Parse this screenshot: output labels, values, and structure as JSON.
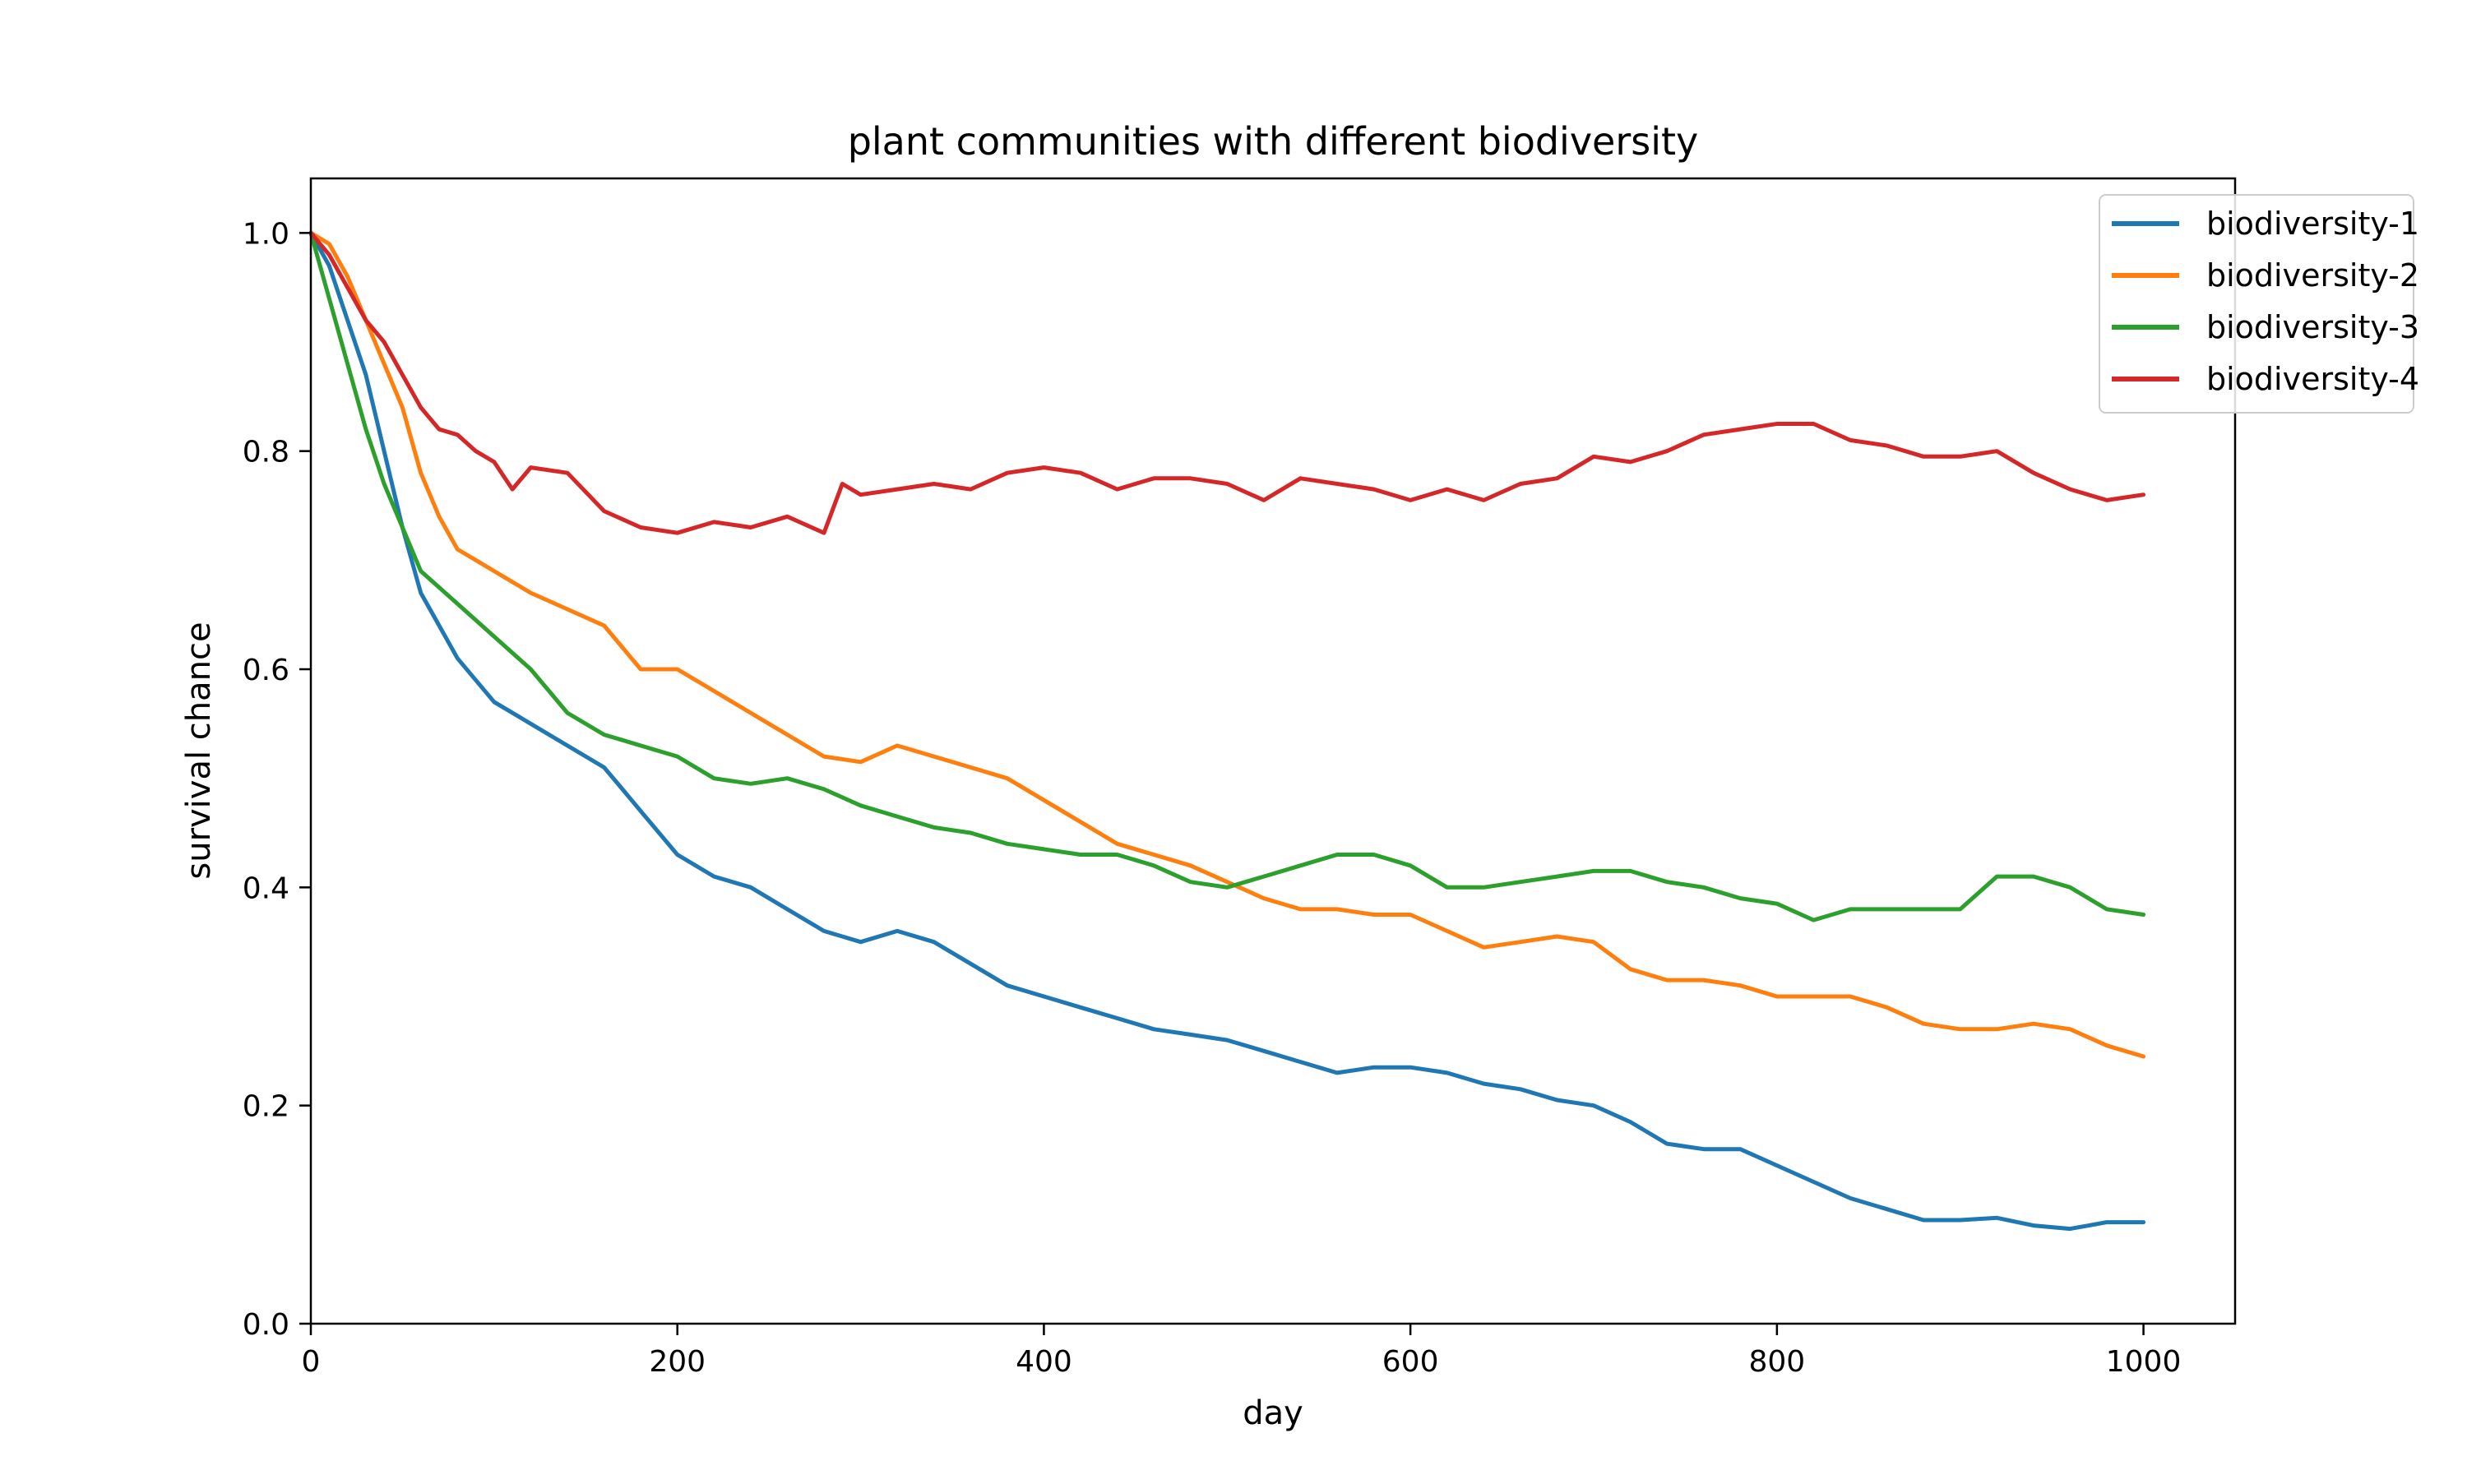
{
  "chart_data": {
    "type": "line",
    "title": "plant communities with different biodiversity",
    "xlabel": "day",
    "ylabel": "survival chance",
    "xlim": [
      0,
      1050
    ],
    "ylim": [
      0,
      1.05
    ],
    "xticks": [
      0,
      200,
      400,
      600,
      800,
      1000
    ],
    "xtick_labels": [
      "0",
      "200",
      "400",
      "600",
      "800",
      "1000"
    ],
    "yticks": [
      0.0,
      0.2,
      0.4,
      0.6,
      0.8,
      1.0
    ],
    "ytick_labels": [
      "0.0",
      "0.2",
      "0.4",
      "0.6",
      "0.8",
      "1.0"
    ],
    "grid": false,
    "legend_position": "top-right",
    "series": [
      {
        "name": "biodiversity-1",
        "color": "#1f77b4",
        "points": [
          [
            0,
            1.0
          ],
          [
            10,
            0.97
          ],
          [
            20,
            0.92
          ],
          [
            30,
            0.87
          ],
          [
            40,
            0.8
          ],
          [
            50,
            0.73
          ],
          [
            60,
            0.67
          ],
          [
            70,
            0.64
          ],
          [
            80,
            0.61
          ],
          [
            90,
            0.59
          ],
          [
            100,
            0.57
          ],
          [
            120,
            0.55
          ],
          [
            140,
            0.53
          ],
          [
            160,
            0.51
          ],
          [
            170,
            0.49
          ],
          [
            180,
            0.47
          ],
          [
            200,
            0.43
          ],
          [
            220,
            0.41
          ],
          [
            240,
            0.4
          ],
          [
            260,
            0.38
          ],
          [
            280,
            0.36
          ],
          [
            300,
            0.35
          ],
          [
            320,
            0.36
          ],
          [
            340,
            0.35
          ],
          [
            360,
            0.33
          ],
          [
            380,
            0.31
          ],
          [
            400,
            0.3
          ],
          [
            420,
            0.29
          ],
          [
            440,
            0.28
          ],
          [
            460,
            0.27
          ],
          [
            480,
            0.265
          ],
          [
            500,
            0.26
          ],
          [
            520,
            0.25
          ],
          [
            540,
            0.24
          ],
          [
            560,
            0.23
          ],
          [
            580,
            0.235
          ],
          [
            600,
            0.235
          ],
          [
            620,
            0.23
          ],
          [
            640,
            0.22
          ],
          [
            660,
            0.215
          ],
          [
            680,
            0.205
          ],
          [
            700,
            0.2
          ],
          [
            720,
            0.185
          ],
          [
            740,
            0.165
          ],
          [
            760,
            0.16
          ],
          [
            780,
            0.16
          ],
          [
            800,
            0.145
          ],
          [
            820,
            0.13
          ],
          [
            840,
            0.115
          ],
          [
            860,
            0.105
          ],
          [
            880,
            0.095
          ],
          [
            900,
            0.095
          ],
          [
            920,
            0.097
          ],
          [
            940,
            0.09
          ],
          [
            960,
            0.087
          ],
          [
            980,
            0.093
          ],
          [
            1000,
            0.093
          ]
        ]
      },
      {
        "name": "biodiversity-2",
        "color": "#ff7f0e",
        "points": [
          [
            0,
            1.0
          ],
          [
            10,
            0.99
          ],
          [
            20,
            0.96
          ],
          [
            30,
            0.92
          ],
          [
            40,
            0.88
          ],
          [
            50,
            0.84
          ],
          [
            60,
            0.78
          ],
          [
            70,
            0.74
          ],
          [
            80,
            0.71
          ],
          [
            90,
            0.7
          ],
          [
            100,
            0.69
          ],
          [
            120,
            0.67
          ],
          [
            140,
            0.655
          ],
          [
            160,
            0.64
          ],
          [
            170,
            0.62
          ],
          [
            180,
            0.6
          ],
          [
            200,
            0.6
          ],
          [
            220,
            0.58
          ],
          [
            240,
            0.56
          ],
          [
            260,
            0.54
          ],
          [
            280,
            0.52
          ],
          [
            300,
            0.515
          ],
          [
            320,
            0.53
          ],
          [
            340,
            0.52
          ],
          [
            360,
            0.51
          ],
          [
            380,
            0.5
          ],
          [
            400,
            0.48
          ],
          [
            420,
            0.46
          ],
          [
            440,
            0.44
          ],
          [
            460,
            0.43
          ],
          [
            480,
            0.42
          ],
          [
            500,
            0.405
          ],
          [
            520,
            0.39
          ],
          [
            540,
            0.38
          ],
          [
            560,
            0.38
          ],
          [
            580,
            0.375
          ],
          [
            600,
            0.375
          ],
          [
            620,
            0.36
          ],
          [
            640,
            0.345
          ],
          [
            660,
            0.35
          ],
          [
            680,
            0.355
          ],
          [
            700,
            0.35
          ],
          [
            720,
            0.325
          ],
          [
            740,
            0.315
          ],
          [
            760,
            0.315
          ],
          [
            780,
            0.31
          ],
          [
            800,
            0.3
          ],
          [
            820,
            0.3
          ],
          [
            840,
            0.3
          ],
          [
            860,
            0.29
          ],
          [
            880,
            0.275
          ],
          [
            900,
            0.27
          ],
          [
            920,
            0.27
          ],
          [
            940,
            0.275
          ],
          [
            960,
            0.27
          ],
          [
            980,
            0.255
          ],
          [
            1000,
            0.245
          ]
        ]
      },
      {
        "name": "biodiversity-3",
        "color": "#2ca02c",
        "points": [
          [
            0,
            1.0
          ],
          [
            10,
            0.94
          ],
          [
            20,
            0.88
          ],
          [
            30,
            0.82
          ],
          [
            40,
            0.77
          ],
          [
            50,
            0.73
          ],
          [
            60,
            0.69
          ],
          [
            70,
            0.675
          ],
          [
            80,
            0.66
          ],
          [
            90,
            0.645
          ],
          [
            100,
            0.63
          ],
          [
            120,
            0.6
          ],
          [
            140,
            0.56
          ],
          [
            160,
            0.54
          ],
          [
            170,
            0.535
          ],
          [
            180,
            0.53
          ],
          [
            200,
            0.52
          ],
          [
            220,
            0.5
          ],
          [
            240,
            0.495
          ],
          [
            260,
            0.5
          ],
          [
            280,
            0.49
          ],
          [
            300,
            0.475
          ],
          [
            320,
            0.465
          ],
          [
            340,
            0.455
          ],
          [
            360,
            0.45
          ],
          [
            380,
            0.44
          ],
          [
            400,
            0.435
          ],
          [
            420,
            0.43
          ],
          [
            440,
            0.43
          ],
          [
            460,
            0.42
          ],
          [
            480,
            0.405
          ],
          [
            500,
            0.4
          ],
          [
            520,
            0.41
          ],
          [
            540,
            0.42
          ],
          [
            560,
            0.43
          ],
          [
            580,
            0.43
          ],
          [
            600,
            0.42
          ],
          [
            620,
            0.4
          ],
          [
            640,
            0.4
          ],
          [
            660,
            0.405
          ],
          [
            680,
            0.41
          ],
          [
            700,
            0.415
          ],
          [
            720,
            0.415
          ],
          [
            740,
            0.405
          ],
          [
            760,
            0.4
          ],
          [
            780,
            0.39
          ],
          [
            800,
            0.385
          ],
          [
            820,
            0.37
          ],
          [
            840,
            0.38
          ],
          [
            860,
            0.38
          ],
          [
            880,
            0.38
          ],
          [
            900,
            0.38
          ],
          [
            920,
            0.41
          ],
          [
            940,
            0.41
          ],
          [
            960,
            0.4
          ],
          [
            980,
            0.38
          ],
          [
            1000,
            0.375
          ]
        ]
      },
      {
        "name": "biodiversity-4",
        "color": "#d62728",
        "points": [
          [
            0,
            1.0
          ],
          [
            10,
            0.98
          ],
          [
            20,
            0.95
          ],
          [
            30,
            0.92
          ],
          [
            40,
            0.9
          ],
          [
            50,
            0.87
          ],
          [
            60,
            0.84
          ],
          [
            70,
            0.82
          ],
          [
            80,
            0.815
          ],
          [
            90,
            0.8
          ],
          [
            100,
            0.79
          ],
          [
            110,
            0.765
          ],
          [
            120,
            0.785
          ],
          [
            140,
            0.78
          ],
          [
            160,
            0.745
          ],
          [
            180,
            0.73
          ],
          [
            200,
            0.725
          ],
          [
            220,
            0.735
          ],
          [
            240,
            0.73
          ],
          [
            260,
            0.74
          ],
          [
            280,
            0.725
          ],
          [
            290,
            0.77
          ],
          [
            300,
            0.76
          ],
          [
            320,
            0.765
          ],
          [
            340,
            0.77
          ],
          [
            360,
            0.765
          ],
          [
            380,
            0.78
          ],
          [
            400,
            0.785
          ],
          [
            420,
            0.78
          ],
          [
            440,
            0.765
          ],
          [
            460,
            0.775
          ],
          [
            480,
            0.775
          ],
          [
            500,
            0.77
          ],
          [
            520,
            0.755
          ],
          [
            540,
            0.775
          ],
          [
            560,
            0.77
          ],
          [
            580,
            0.765
          ],
          [
            600,
            0.755
          ],
          [
            620,
            0.765
          ],
          [
            640,
            0.755
          ],
          [
            660,
            0.77
          ],
          [
            680,
            0.775
          ],
          [
            700,
            0.795
          ],
          [
            720,
            0.79
          ],
          [
            740,
            0.8
          ],
          [
            760,
            0.815
          ],
          [
            780,
            0.82
          ],
          [
            800,
            0.825
          ],
          [
            820,
            0.825
          ],
          [
            840,
            0.81
          ],
          [
            860,
            0.805
          ],
          [
            880,
            0.795
          ],
          [
            900,
            0.795
          ],
          [
            920,
            0.8
          ],
          [
            940,
            0.78
          ],
          [
            960,
            0.765
          ],
          [
            980,
            0.755
          ],
          [
            1000,
            0.76
          ]
        ]
      }
    ]
  }
}
